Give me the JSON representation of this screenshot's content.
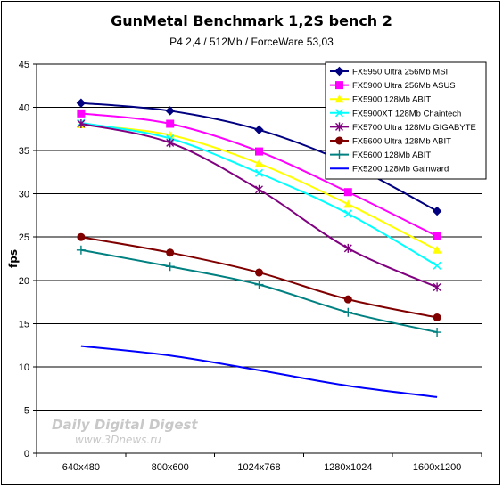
{
  "chart_data": {
    "type": "line",
    "title": "GunMetal Benchmark 1,2S bench 2",
    "subtitle": "P4 2,4 / 512Mb / ForceWare 53,03",
    "xlabel": "",
    "ylabel": "fps",
    "ylim": [
      0,
      45
    ],
    "ytick_step": 5,
    "grid": true,
    "legend_position": "top-right",
    "categories": [
      "640x480",
      "800x600",
      "1024x768",
      "1280x1024",
      "1600x1200"
    ],
    "series": [
      {
        "name": "FX5950 Ultra 256Mb MSI",
        "values": [
          40.5,
          39.6,
          37.4,
          33.5,
          28.0
        ],
        "color": "#000080",
        "marker": "diamond"
      },
      {
        "name": "FX5900 Ultra 256Mb ASUS",
        "values": [
          39.3,
          38.1,
          34.9,
          30.2,
          25.1
        ],
        "color": "#ff00ff",
        "marker": "square"
      },
      {
        "name": "FX5900 128Mb ABIT",
        "values": [
          38.0,
          36.8,
          33.5,
          28.8,
          23.5
        ],
        "color": "#ffff00",
        "marker": "triangle"
      },
      {
        "name": "FX5900XT 128Mb Chaintech",
        "values": [
          38.2,
          36.4,
          32.4,
          27.7,
          21.7
        ],
        "color": "#00ffff",
        "marker": "x"
      },
      {
        "name": "FX5700 Ultra 128Mb GIGABYTE",
        "values": [
          38.1,
          35.9,
          30.5,
          23.7,
          19.2
        ],
        "color": "#800080",
        "marker": "star"
      },
      {
        "name": "FX5600 Ultra 128Mb ABIT",
        "values": [
          25.0,
          23.2,
          20.9,
          17.8,
          15.7
        ],
        "color": "#800000",
        "marker": "circle"
      },
      {
        "name": "FX5600 128Mb ABIT",
        "values": [
          23.5,
          21.6,
          19.5,
          16.3,
          14.0
        ],
        "color": "#008080",
        "marker": "plus"
      },
      {
        "name": "FX5200 128Mb Gainward",
        "values": [
          12.4,
          11.3,
          9.6,
          7.8,
          6.5
        ],
        "color": "#0000ff",
        "marker": "none"
      }
    ]
  },
  "watermark": {
    "line1": "Daily Digital Digest",
    "line2": "www.3Dnews.ru"
  }
}
